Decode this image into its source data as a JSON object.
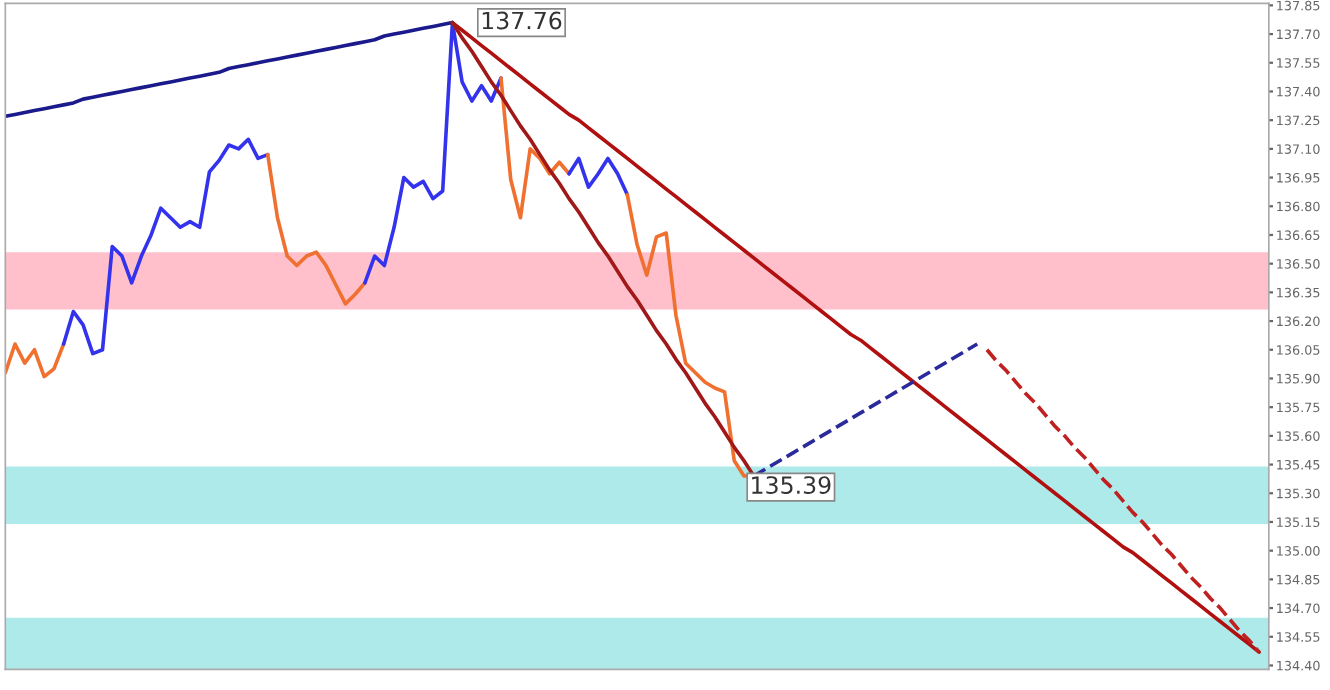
{
  "chart_data": {
    "type": "line",
    "categories": [
      null,
      null,
      null,
      null,
      null,
      null,
      null,
      null,
      null,
      null,
      null,
      null,
      null,
      null,
      null,
      null,
      null,
      null,
      null,
      null,
      null,
      null,
      null,
      null,
      null,
      null,
      null,
      null,
      null,
      null,
      null,
      null,
      null,
      null,
      null,
      null,
      null,
      null,
      null,
      null,
      null,
      null,
      null,
      null,
      null,
      null,
      null,
      null,
      null,
      null,
      null,
      null,
      null,
      null,
      null,
      null,
      null,
      null,
      null,
      null,
      null,
      null,
      null,
      null,
      null,
      null,
      null,
      null,
      null,
      null,
      null,
      null,
      null,
      null,
      null,
      null,
      null,
      null,
      null,
      null,
      null,
      null,
      null,
      null,
      null,
      null,
      null,
      null,
      null,
      null,
      null,
      null,
      null,
      null,
      null,
      null,
      null,
      null,
      null,
      null,
      null,
      null,
      null,
      null,
      null,
      null,
      null,
      null,
      null,
      null,
      null,
      null,
      null,
      null,
      null,
      null,
      null,
      null,
      null,
      null,
      null,
      null,
      null,
      null,
      null,
      null,
      null,
      null,
      null,
      null
    ],
    "ylim": [
      134.38,
      137.86
    ],
    "yticks": [
      137.85,
      {
        "value": 137.7,
        "label": "137.70"
      },
      137.55,
      {
        "value": 137.4,
        "label": "137.40"
      },
      137.25,
      {
        "value": 137.1,
        "label": "137.10"
      },
      136.95,
      {
        "value": 136.8,
        "label": "136.80"
      },
      136.65,
      {
        "value": 136.5,
        "label": "136.50"
      },
      136.35,
      {
        "value": 136.2,
        "label": "136.20"
      },
      136.05,
      {
        "value": 135.9,
        "label": "135.90"
      },
      135.75,
      {
        "value": 135.6,
        "label": "135.60"
      },
      135.45,
      {
        "value": 135.3,
        "label": "135.30"
      },
      135.15,
      {
        "value": 135.0,
        "label": "135.00"
      },
      134.85,
      {
        "value": 134.7,
        "label": "134.70"
      },
      134.55,
      {
        "value": 134.4,
        "label": "134.40"
      }
    ],
    "tick_labels": "y",
    "bands": [
      {
        "axis": "y",
        "from": 136.26,
        "to": 136.56,
        "color": "#ffc0cb"
      },
      {
        "axis": "y",
        "from": 135.14,
        "to": 135.44,
        "color": "#aeeaea"
      },
      {
        "axis": "y",
        "from": 134.38,
        "to": 134.65,
        "color": "#aeeaea"
      }
    ],
    "series": [
      {
        "color": "#f07030",
        "values": [
          135.93,
          136.08,
          135.98,
          136.05,
          135.91,
          135.95,
          136.08,
          null,
          null,
          null,
          null,
          null,
          null,
          null,
          null,
          null,
          null,
          null,
          null,
          null,
          null,
          null,
          null,
          null,
          null,
          null,
          null,
          null,
          null,
          null,
          null,
          null,
          null,
          null,
          null,
          null,
          null,
          null,
          null,
          null,
          null,
          null,
          null,
          null,
          null,
          null,
          null,
          null,
          null,
          null,
          null,
          null,
          null,
          null,
          null,
          null,
          null,
          null,
          null,
          null,
          null,
          null,
          null,
          null,
          null,
          null,
          null,
          null,
          null,
          null,
          null,
          null,
          null,
          null,
          null,
          null,
          null,
          null,
          null,
          null,
          null,
          null,
          null,
          null,
          null,
          null,
          null,
          null,
          null,
          null,
          null,
          null,
          null,
          null,
          null,
          null,
          null,
          null,
          null,
          null,
          null,
          null,
          null,
          null,
          null,
          null,
          null,
          null,
          null,
          null,
          null,
          null,
          null,
          null,
          null,
          null,
          null,
          null,
          null,
          null,
          null,
          null,
          null,
          null,
          null,
          null,
          null,
          null,
          null,
          null
        ]
      },
      {
        "color": "#3333ee",
        "values": [
          null,
          null,
          null,
          null,
          null,
          null,
          136.08,
          136.25,
          136.18,
          136.03,
          136.05,
          136.59,
          136.54,
          136.4,
          136.54,
          136.65,
          136.79,
          136.74,
          136.69,
          136.72,
          136.69,
          136.98,
          137.04,
          137.12,
          137.1,
          137.15,
          137.05,
          137.07,
          null,
          null,
          null,
          null,
          null,
          null,
          null,
          null,
          null,
          null,
          null,
          null,
          null,
          null,
          null,
          null,
          null,
          null,
          null,
          null,
          null,
          null,
          null,
          null,
          null,
          null,
          null,
          null,
          null,
          null,
          null,
          null,
          null,
          null,
          null,
          null,
          null,
          null,
          null,
          null,
          null,
          null,
          null,
          null,
          null,
          null,
          null,
          null,
          null,
          null,
          null,
          null,
          null,
          null,
          null,
          null,
          null,
          null,
          null,
          null,
          null,
          null,
          null,
          null,
          null,
          null,
          null,
          null,
          null,
          null,
          null,
          null,
          null,
          null,
          null,
          null,
          null,
          null,
          null,
          null,
          null,
          null,
          null,
          null,
          null,
          null,
          null,
          null,
          null,
          null,
          null,
          null,
          null,
          null,
          null,
          null,
          null,
          null,
          null,
          null,
          null,
          null
        ]
      },
      {
        "color": "#f07030",
        "values": [
          null,
          null,
          null,
          null,
          null,
          null,
          null,
          null,
          null,
          null,
          null,
          null,
          null,
          null,
          null,
          null,
          null,
          null,
          null,
          null,
          null,
          null,
          null,
          null,
          null,
          null,
          null,
          137.07,
          136.74,
          136.54,
          136.49,
          136.54,
          136.56,
          136.49,
          136.39,
          136.29,
          136.34,
          136.4,
          null,
          null,
          null,
          null,
          null,
          null,
          null,
          null,
          null,
          null,
          null,
          null,
          null,
          null,
          null,
          null,
          null,
          null,
          null,
          null,
          null,
          null,
          null,
          null,
          null,
          null,
          null,
          null,
          null,
          null,
          null,
          null,
          null,
          null,
          null,
          null,
          null,
          null,
          null,
          null,
          null,
          null,
          null,
          null,
          null,
          null,
          null,
          null,
          null,
          null,
          null,
          null,
          null,
          null,
          null,
          null,
          null,
          null,
          null,
          null,
          null,
          null,
          null,
          null,
          null,
          null,
          null,
          null,
          null,
          null,
          null,
          null,
          null,
          null,
          null,
          null,
          null,
          null,
          null,
          null,
          null,
          null,
          null,
          null,
          null,
          null,
          null,
          null,
          null,
          null,
          null,
          null
        ]
      },
      {
        "color": "#3333ee",
        "values": [
          null,
          null,
          null,
          null,
          null,
          null,
          null,
          null,
          null,
          null,
          null,
          null,
          null,
          null,
          null,
          null,
          null,
          null,
          null,
          null,
          null,
          null,
          null,
          null,
          null,
          null,
          null,
          null,
          null,
          null,
          null,
          null,
          null,
          null,
          null,
          null,
          null,
          136.4,
          136.54,
          136.49,
          136.69,
          136.95,
          136.9,
          136.93,
          136.84,
          136.88,
          137.76,
          137.45,
          137.35,
          137.43,
          137.35,
          137.47,
          null,
          null,
          null,
          null,
          null,
          null,
          null,
          null,
          null,
          null,
          null,
          null,
          null,
          null,
          null,
          null,
          null,
          null,
          null,
          null,
          null,
          null,
          null,
          null,
          null,
          null,
          null,
          null,
          null,
          null,
          null,
          null,
          null,
          null,
          null,
          null,
          null,
          null,
          null,
          null,
          null,
          null,
          null,
          null,
          null,
          null,
          null,
          null,
          null,
          null,
          null,
          null,
          null,
          null,
          null,
          null,
          null,
          null,
          null,
          null,
          null,
          null,
          null,
          null,
          null,
          null,
          null,
          null,
          null,
          null,
          null,
          null,
          null,
          null,
          null,
          null,
          null,
          null
        ]
      },
      {
        "color": "#f07030",
        "values": [
          null,
          null,
          null,
          null,
          null,
          null,
          null,
          null,
          null,
          null,
          null,
          null,
          null,
          null,
          null,
          null,
          null,
          null,
          null,
          null,
          null,
          null,
          null,
          null,
          null,
          null,
          null,
          null,
          null,
          null,
          null,
          null,
          null,
          null,
          null,
          null,
          null,
          null,
          null,
          null,
          null,
          null,
          null,
          null,
          null,
          null,
          null,
          null,
          null,
          null,
          null,
          137.47,
          136.94,
          136.74,
          137.1,
          137.05,
          136.97,
          137.03,
          136.97,
          null,
          null,
          null,
          null,
          null,
          null,
          null,
          null,
          null,
          null,
          null,
          null,
          null,
          null,
          null,
          null,
          null,
          null,
          null,
          null,
          null,
          null,
          null,
          null,
          null,
          null,
          null,
          null,
          null,
          null,
          null,
          null,
          null,
          null,
          null,
          null,
          null,
          null,
          null,
          null,
          null,
          null,
          null,
          null,
          null,
          null,
          null,
          null,
          null,
          null,
          null,
          null,
          null,
          null,
          null,
          null,
          null,
          null,
          null,
          null,
          null,
          null,
          null,
          null,
          null,
          null,
          null,
          null,
          null,
          null,
          null
        ]
      },
      {
        "color": "#3333ee",
        "values": [
          null,
          null,
          null,
          null,
          null,
          null,
          null,
          null,
          null,
          null,
          null,
          null,
          null,
          null,
          null,
          null,
          null,
          null,
          null,
          null,
          null,
          null,
          null,
          null,
          null,
          null,
          null,
          null,
          null,
          null,
          null,
          null,
          null,
          null,
          null,
          null,
          null,
          null,
          null,
          null,
          null,
          null,
          null,
          null,
          null,
          null,
          null,
          null,
          null,
          null,
          null,
          null,
          null,
          null,
          null,
          null,
          null,
          null,
          136.97,
          137.05,
          136.9,
          136.97,
          137.05,
          136.97,
          136.86,
          null,
          null,
          null,
          null,
          null,
          null,
          null,
          null,
          null,
          null,
          null,
          null,
          null,
          null,
          null,
          null,
          null,
          null,
          null,
          null,
          null,
          null,
          null,
          null,
          null,
          null,
          null,
          null,
          null,
          null,
          null,
          null,
          null,
          null,
          null,
          null,
          null,
          null,
          null,
          null,
          null,
          null,
          null,
          null,
          null,
          null,
          null,
          null,
          null,
          null,
          null,
          null,
          null,
          null,
          null,
          null,
          null,
          null,
          null,
          null,
          null,
          null,
          null,
          null,
          null
        ]
      },
      {
        "color": "#f07030",
        "values": [
          null,
          null,
          null,
          null,
          null,
          null,
          null,
          null,
          null,
          null,
          null,
          null,
          null,
          null,
          null,
          null,
          null,
          null,
          null,
          null,
          null,
          null,
          null,
          null,
          null,
          null,
          null,
          null,
          null,
          null,
          null,
          null,
          null,
          null,
          null,
          null,
          null,
          null,
          null,
          null,
          null,
          null,
          null,
          null,
          null,
          null,
          null,
          null,
          null,
          null,
          null,
          null,
          null,
          null,
          null,
          null,
          null,
          null,
          null,
          null,
          null,
          null,
          null,
          null,
          136.86,
          136.6,
          136.44,
          136.64,
          136.66,
          136.23,
          135.98,
          135.93,
          135.88,
          135.85,
          135.83,
          135.47,
          135.39,
          135.39,
          null,
          null,
          null,
          null,
          null,
          null,
          null,
          null,
          null,
          null,
          null,
          null,
          null,
          null,
          null,
          null,
          null,
          null,
          null,
          null,
          null,
          null,
          null,
          null,
          null,
          null,
          null,
          null,
          null,
          null,
          null,
          null,
          null,
          null,
          null,
          null,
          null,
          null,
          null,
          null,
          null,
          null,
          null,
          null,
          null,
          null,
          null,
          null,
          null,
          null,
          null,
          null
        ]
      },
      {
        "color": "#1a1a8c",
        "values": [
          137.27,
          137.28,
          137.29,
          137.3,
          137.31,
          137.32,
          137.33,
          137.34,
          137.36,
          137.37,
          137.38,
          137.39,
          137.4,
          137.41,
          137.42,
          137.43,
          137.44,
          137.45,
          137.46,
          137.47,
          137.48,
          137.49,
          137.5,
          137.52,
          137.53,
          137.54,
          137.55,
          137.56,
          137.57,
          137.58,
          137.59,
          137.6,
          137.61,
          137.62,
          137.63,
          137.64,
          137.65,
          137.66,
          137.67,
          137.69,
          137.7,
          137.71,
          137.72,
          137.73,
          137.74,
          137.75,
          137.76,
          null,
          null,
          null,
          null,
          null,
          null,
          null,
          null,
          null,
          null,
          null,
          null,
          null,
          null,
          null,
          null,
          null,
          null,
          null,
          null,
          null,
          null,
          null,
          null,
          null,
          null,
          null,
          null,
          null,
          null,
          null,
          null,
          null,
          null,
          null,
          null,
          null,
          null,
          null,
          null,
          null,
          null,
          null,
          null,
          null,
          null,
          null,
          null,
          null,
          null,
          null,
          null,
          null,
          null,
          null,
          null,
          null,
          null,
          null,
          null,
          null,
          null,
          null,
          null,
          null,
          null,
          null,
          null,
          null,
          null,
          null,
          null,
          null,
          null,
          null,
          null,
          null,
          null,
          null,
          null,
          null,
          null,
          null
        ]
      },
      {
        "color": "#b01010",
        "values": [
          null,
          null,
          null,
          null,
          null,
          null,
          null,
          null,
          null,
          null,
          null,
          null,
          null,
          null,
          null,
          null,
          null,
          null,
          null,
          null,
          null,
          null,
          null,
          null,
          null,
          null,
          null,
          null,
          null,
          null,
          null,
          null,
          null,
          null,
          null,
          null,
          null,
          null,
          null,
          null,
          null,
          null,
          null,
          null,
          null,
          null,
          137.76,
          137.72,
          137.68,
          137.64,
          137.6,
          137.56,
          137.52,
          137.48,
          137.44,
          137.4,
          137.36,
          137.32,
          137.28,
          137.25,
          137.21,
          137.17,
          137.13,
          137.09,
          137.05,
          137.01,
          136.97,
          136.93,
          136.89,
          136.85,
          136.81,
          136.77,
          136.73,
          136.69,
          136.65,
          136.61,
          136.57,
          136.53,
          136.49,
          136.45,
          136.41,
          136.37,
          136.33,
          136.29,
          136.25,
          136.21,
          136.17,
          136.13,
          136.1,
          136.06,
          136.02,
          135.98,
          135.94,
          135.9,
          135.86,
          135.82,
          135.78,
          135.74,
          135.7,
          135.66,
          135.62,
          135.58,
          135.54,
          135.5,
          135.46,
          135.42,
          135.38,
          135.34,
          135.3,
          135.26,
          135.22,
          135.18,
          135.14,
          135.1,
          135.06,
          135.02,
          134.99,
          134.95,
          134.91,
          134.87,
          134.83,
          134.79,
          134.75,
          134.71,
          134.67,
          134.63,
          134.59,
          134.55,
          134.51,
          134.47
        ]
      },
      {
        "color": "#a01818",
        "values": [
          null,
          null,
          null,
          null,
          null,
          null,
          null,
          null,
          null,
          null,
          null,
          null,
          null,
          null,
          null,
          null,
          null,
          null,
          null,
          null,
          null,
          null,
          null,
          null,
          null,
          null,
          null,
          null,
          null,
          null,
          null,
          null,
          null,
          null,
          null,
          null,
          null,
          null,
          null,
          null,
          null,
          null,
          null,
          null,
          null,
          null,
          137.76,
          137.68,
          137.61,
          137.53,
          137.45,
          137.38,
          137.3,
          137.22,
          137.15,
          137.07,
          136.99,
          136.92,
          136.84,
          136.77,
          136.69,
          136.61,
          136.54,
          136.46,
          136.38,
          136.31,
          136.23,
          136.15,
          136.08,
          136.0,
          135.93,
          135.85,
          135.77,
          135.7,
          135.62,
          135.54,
          135.47,
          135.39,
          null,
          null,
          null,
          null,
          null,
          null,
          null,
          null,
          null,
          null,
          null,
          null,
          null,
          null,
          null,
          null,
          null,
          null,
          null,
          null,
          null,
          null,
          null,
          null,
          null,
          null,
          null,
          null,
          null,
          null,
          null,
          null,
          null,
          null,
          null,
          null,
          null,
          null,
          null,
          null,
          null,
          null,
          null,
          null,
          null,
          null,
          null,
          null,
          null,
          null,
          null,
          null
        ]
      },
      {
        "color": "#2a2a9a",
        "line_style": "dashed",
        "values": [
          null,
          null,
          null,
          null,
          null,
          null,
          null,
          null,
          null,
          null,
          null,
          null,
          null,
          null,
          null,
          null,
          null,
          null,
          null,
          null,
          null,
          null,
          null,
          null,
          null,
          null,
          null,
          null,
          null,
          null,
          null,
          null,
          null,
          null,
          null,
          null,
          null,
          null,
          null,
          null,
          null,
          null,
          null,
          null,
          null,
          null,
          null,
          null,
          null,
          null,
          null,
          null,
          null,
          null,
          null,
          null,
          null,
          null,
          null,
          null,
          null,
          null,
          null,
          null,
          null,
          null,
          null,
          null,
          null,
          null,
          null,
          null,
          null,
          null,
          null,
          null,
          null,
          135.39,
          135.42,
          135.45,
          135.48,
          135.51,
          135.54,
          135.57,
          135.6,
          135.63,
          135.66,
          135.69,
          135.72,
          135.75,
          135.78,
          135.81,
          135.84,
          135.87,
          135.9,
          135.93,
          135.96,
          135.99,
          136.02,
          136.05,
          136.08,
          null,
          null,
          null,
          null,
          null,
          null,
          null,
          null,
          null,
          null,
          null,
          null,
          null,
          null,
          null,
          null,
          null,
          null,
          null,
          null,
          null,
          null,
          null,
          null,
          null,
          null,
          null,
          null,
          null
        ]
      },
      {
        "color": "#c02020",
        "line_style": "dashed",
        "values": [
          null,
          null,
          null,
          null,
          null,
          null,
          null,
          null,
          null,
          null,
          null,
          null,
          null,
          null,
          null,
          null,
          null,
          null,
          null,
          null,
          null,
          null,
          null,
          null,
          null,
          null,
          null,
          null,
          null,
          null,
          null,
          null,
          null,
          null,
          null,
          null,
          null,
          null,
          null,
          null,
          null,
          null,
          null,
          null,
          null,
          null,
          null,
          null,
          null,
          null,
          null,
          null,
          null,
          null,
          null,
          null,
          null,
          null,
          null,
          null,
          null,
          null,
          null,
          null,
          null,
          null,
          null,
          null,
          null,
          null,
          null,
          null,
          null,
          null,
          null,
          null,
          null,
          null,
          null,
          null,
          null,
          null,
          null,
          null,
          null,
          null,
          null,
          null,
          null,
          null,
          null,
          null,
          null,
          null,
          null,
          null,
          null,
          null,
          null,
          null,
          null,
          136.05,
          135.99,
          135.94,
          135.88,
          135.82,
          135.77,
          135.71,
          135.65,
          135.6,
          135.54,
          135.49,
          135.43,
          135.37,
          135.32,
          135.26,
          135.2,
          135.15,
          135.09,
          135.03,
          134.98,
          134.92,
          134.86,
          134.81,
          134.75,
          134.7,
          134.64,
          134.58,
          134.53,
          134.47
        ]
      }
    ],
    "annotations": [
      "137.76",
      "135.39"
    ]
  }
}
